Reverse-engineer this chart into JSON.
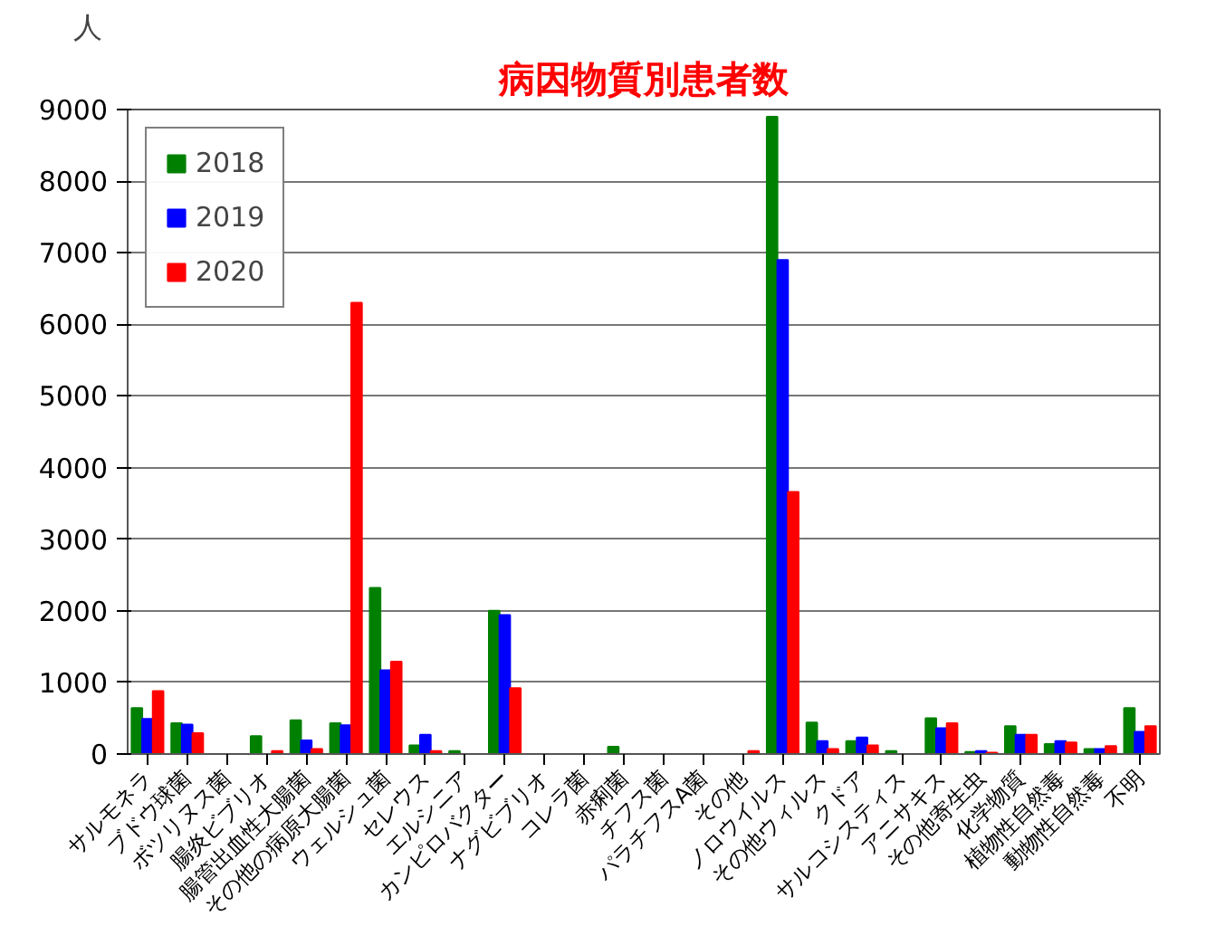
{
  "chart_data": {
    "type": "bar",
    "title": "病因物質別患者数",
    "ylabel": "人",
    "categories": [
      "サルモネラ",
      "ブドウ球菌",
      "ボツリヌス菌",
      "腸炎ビブリオ",
      "腸管出血性大腸菌",
      "その他の病原大腸菌",
      "ウェルシュ菌",
      "セレウス",
      "エルシニア",
      "カンピロバクター",
      "ナグビブリオ",
      "コレラ菌",
      "赤痢菌",
      "チフス菌",
      "パラチフスA菌",
      "その他",
      "ノロウイルス",
      "その他ウィルス",
      "クドア",
      "サルコシスティス",
      "アニサキス",
      "その他寄生虫",
      "化学物質",
      "植物性自然毒",
      "動物性自然毒",
      "不明"
    ],
    "series": [
      {
        "name": "2018",
        "color": "#008000",
        "values": [
          640,
          430,
          0,
          250,
          470,
          430,
          2320,
          120,
          40,
          2000,
          0,
          0,
          100,
          0,
          0,
          0,
          8900,
          440,
          180,
          40,
          500,
          30,
          390,
          140,
          70,
          640
        ]
      },
      {
        "name": "2019",
        "color": "#0000ff",
        "values": [
          490,
          410,
          0,
          0,
          190,
          400,
          1170,
          270,
          0,
          1940,
          0,
          0,
          0,
          0,
          0,
          0,
          6900,
          180,
          230,
          0,
          360,
          40,
          270,
          180,
          70,
          310
        ]
      },
      {
        "name": "2020",
        "color": "#ff0000",
        "values": [
          880,
          290,
          0,
          40,
          70,
          6300,
          1290,
          40,
          0,
          920,
          0,
          0,
          0,
          0,
          0,
          40,
          3660,
          70,
          120,
          0,
          430,
          20,
          270,
          160,
          110,
          390
        ]
      }
    ],
    "ylim": [
      0,
      9000
    ],
    "yticks": [
      0,
      1000,
      2000,
      3000,
      4000,
      5000,
      6000,
      7000,
      8000,
      9000
    ],
    "grid": "y",
    "legend": "top left"
  }
}
